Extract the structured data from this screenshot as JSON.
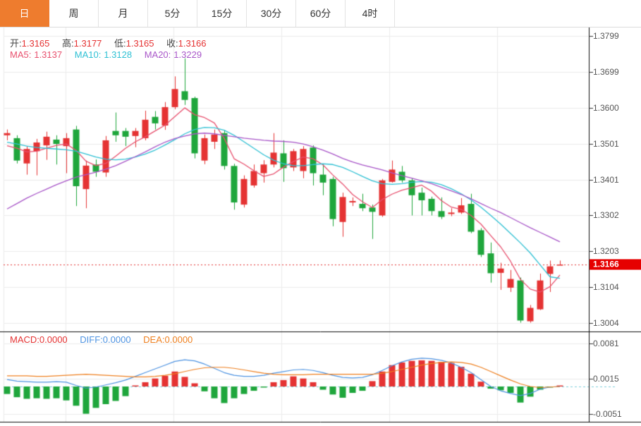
{
  "toolbar": {
    "tabs": [
      {
        "label": "日",
        "active": true
      },
      {
        "label": "周",
        "active": false
      },
      {
        "label": "月",
        "active": false
      },
      {
        "label": "5分",
        "active": false
      },
      {
        "label": "15分",
        "active": false
      },
      {
        "label": "30分",
        "active": false
      },
      {
        "label": "60分",
        "active": false
      },
      {
        "label": "4时",
        "active": false
      }
    ]
  },
  "ohlc": {
    "open_label": "开:",
    "open": "1.3165",
    "high_label": "高:",
    "high": "1.3177",
    "low_label": "低:",
    "low": "1.3165",
    "close_label": "收:",
    "close": "1.3166"
  },
  "ma_row": {
    "ma5_label": "MA5:",
    "ma5": "1.3137",
    "ma10_label": "MA10:",
    "ma10": "1.3128",
    "ma20_label": "MA20:",
    "ma20": "1.3229"
  },
  "macd_row": {
    "macd_label": "MACD:",
    "macd": "0.0000",
    "diff_label": "DIFF:",
    "diff": "0.0000",
    "dea_label": "DEA:",
    "dea": "0.0000"
  },
  "price_axis": {
    "labels": [
      "1.3799",
      "1.3699",
      "1.3600",
      "1.3501",
      "1.3401",
      "1.3302",
      "1.3203",
      "1.3104",
      "1.3004"
    ],
    "current_price_label": "1.3166"
  },
  "macd_axis": {
    "labels": [
      "0.0081",
      "0.0015",
      "-0.0051"
    ]
  },
  "colors": {
    "up": "#e53333",
    "down": "#1fa63c",
    "ma5": "#e8506e",
    "ma10": "#2fc1d4",
    "ma20": "#a957c9",
    "diff": "#4f94e2",
    "dea": "#ef8121",
    "grid": "#ececec",
    "frame": "#111111",
    "zero_dash": "#7fd0dc",
    "current_line": "#e53333",
    "badge_bg": "#e60000",
    "tab_active_bg": "#ee7c2e",
    "axis_text": "#555555"
  },
  "chart_data": {
    "type": "candlestick",
    "panels": [
      {
        "name": "price",
        "type": "candlestick",
        "yticks": [
          1.3799,
          1.3699,
          1.36,
          1.3501,
          1.3401,
          1.3302,
          1.3203,
          1.3104,
          1.3004
        ],
        "current_price": 1.3166,
        "candles": [
          [
            1.3524,
            1.354,
            1.351,
            1.353
          ],
          [
            1.3516,
            1.3524,
            1.3446,
            1.3454
          ],
          [
            1.3446,
            1.3494,
            1.3415,
            1.3486
          ],
          [
            1.348,
            1.3514,
            1.3413,
            1.3504
          ],
          [
            1.3496,
            1.3534,
            1.3456,
            1.352
          ],
          [
            1.3512,
            1.3524,
            1.3443,
            1.35
          ],
          [
            1.3494,
            1.353,
            1.3419,
            1.3516
          ],
          [
            1.354,
            1.355,
            1.3328,
            1.3383
          ],
          [
            1.3375,
            1.3454,
            1.3322,
            1.344
          ],
          [
            1.3443,
            1.3457,
            1.3409,
            1.3423
          ],
          [
            1.3421,
            1.3522,
            1.3409,
            1.351
          ],
          [
            1.3536,
            1.3587,
            1.3506,
            1.3524
          ],
          [
            1.3536,
            1.3544,
            1.3494,
            1.352
          ],
          [
            1.3522,
            1.3544,
            1.3491,
            1.3536
          ],
          [
            1.3516,
            1.3592,
            1.351,
            1.3567
          ],
          [
            1.3575,
            1.3591,
            1.354,
            1.3557
          ],
          [
            1.3551,
            1.3616,
            1.3539,
            1.3602
          ],
          [
            1.3602,
            1.3687,
            1.3596,
            1.3652
          ],
          [
            1.3646,
            1.3737,
            1.3608,
            1.3622
          ],
          [
            1.3627,
            1.3631,
            1.346,
            1.3474
          ],
          [
            1.3454,
            1.3526,
            1.3444,
            1.3516
          ],
          [
            1.3506,
            1.354,
            1.3486,
            1.3526
          ],
          [
            1.353,
            1.3538,
            1.3429,
            1.3439
          ],
          [
            1.3439,
            1.3445,
            1.3318,
            1.3338
          ],
          [
            1.3332,
            1.3413,
            1.3324,
            1.3403
          ],
          [
            1.3385,
            1.3443,
            1.3379,
            1.3425
          ],
          [
            1.3419,
            1.3455,
            1.3393,
            1.3443
          ],
          [
            1.3443,
            1.353,
            1.3435,
            1.3476
          ],
          [
            1.3474,
            1.351,
            1.3395,
            1.3433
          ],
          [
            1.3435,
            1.3486,
            1.3425,
            1.348
          ],
          [
            1.3425,
            1.3494,
            1.3405,
            1.3486
          ],
          [
            1.349,
            1.3496,
            1.3385,
            1.3419
          ],
          [
            1.3415,
            1.3445,
            1.3358,
            1.3393
          ],
          [
            1.3403,
            1.3409,
            1.3272,
            1.3292
          ],
          [
            1.3284,
            1.3365,
            1.3243,
            1.3353
          ],
          [
            1.3338,
            1.3352,
            1.3328,
            1.3342
          ],
          [
            1.3334,
            1.3362,
            1.3314,
            1.3322
          ],
          [
            1.3324,
            1.3332,
            1.3237,
            1.3312
          ],
          [
            1.3302,
            1.3403,
            1.3298,
            1.3399
          ],
          [
            1.3395,
            1.3454,
            1.3393,
            1.3429
          ],
          [
            1.3423,
            1.3439,
            1.3393,
            1.3399
          ],
          [
            1.3399,
            1.3405,
            1.3302,
            1.3358
          ],
          [
            1.3365,
            1.3379,
            1.3302,
            1.3344
          ],
          [
            1.3348,
            1.3354,
            1.3302,
            1.3314
          ],
          [
            1.3314,
            1.3352,
            1.3292,
            1.3298
          ],
          [
            1.3306,
            1.3322,
            1.33,
            1.331
          ],
          [
            1.331,
            1.335,
            1.3306,
            1.333
          ],
          [
            1.3334,
            1.3362,
            1.3253,
            1.3257
          ],
          [
            1.3261,
            1.3267,
            1.3187,
            1.3193
          ],
          [
            1.3197,
            1.3227,
            1.3116,
            1.3142
          ],
          [
            1.3143,
            1.3171,
            1.3096,
            1.3155
          ],
          [
            1.3102,
            1.3151,
            1.309,
            1.3126
          ],
          [
            1.3122,
            1.313,
            1.3005,
            1.3011
          ],
          [
            1.3009,
            1.3054,
            1.3005,
            1.3046
          ],
          [
            1.3042,
            1.3141,
            1.304,
            1.3122
          ],
          [
            1.314,
            1.3177,
            1.309,
            1.3161
          ],
          [
            1.3165,
            1.3177,
            1.3165,
            1.3166
          ]
        ],
        "overlays": [
          {
            "name": "MA5",
            "values": [
              1.3495,
              1.3488,
              1.3478,
              1.348,
              1.3488,
              1.3496,
              1.35,
              1.3482,
              1.3452,
              1.344,
              1.3446,
              1.3466,
              1.3488,
              1.3506,
              1.352,
              1.3536,
              1.3552,
              1.3576,
              1.36,
              1.3581,
              1.3573,
              1.3558,
              1.3515,
              1.3459,
              1.3444,
              1.3426,
              1.341,
              1.3417,
              1.3436,
              1.3451,
              1.3464,
              1.3459,
              1.3442,
              1.3414,
              1.3389,
              1.336,
              1.334,
              1.3324,
              1.3346,
              1.3361,
              1.3372,
              1.3379,
              1.3386,
              1.3369,
              1.3343,
              1.3325,
              1.3319,
              1.3302,
              1.3278,
              1.3246,
              1.3215,
              1.3175,
              1.3125,
              1.3098,
              1.309,
              1.3105,
              1.3137
            ]
          },
          {
            "name": "MA10",
            "values": [
              1.3505,
              1.35,
              1.3494,
              1.349,
              1.3488,
              1.3486,
              1.3484,
              1.348,
              1.3472,
              1.3464,
              1.3458,
              1.3456,
              1.3458,
              1.3464,
              1.3472,
              1.3483,
              1.3497,
              1.3512,
              1.3528,
              1.354,
              1.3546,
              1.3545,
              1.3538,
              1.3524,
              1.3506,
              1.3488,
              1.347,
              1.3455,
              1.3445,
              1.344,
              1.344,
              1.3443,
              1.3445,
              1.3443,
              1.3435,
              1.3423,
              1.341,
              1.3398,
              1.339,
              1.3388,
              1.339,
              1.3394,
              1.3396,
              1.3394,
              1.3387,
              1.3376,
              1.3362,
              1.3345,
              1.3325,
              1.3302,
              1.3278,
              1.3252,
              1.3226,
              1.3198,
              1.3165,
              1.3132,
              1.3128
            ]
          },
          {
            "name": "MA20",
            "values": [
              1.332,
              1.3335,
              1.335,
              1.3363,
              1.3375,
              1.3387,
              1.3398,
              1.3408,
              1.3415,
              1.3422,
              1.343,
              1.344,
              1.3452,
              1.3465,
              1.3478,
              1.3492,
              1.3505,
              1.3515,
              1.3522,
              1.3528,
              1.353,
              1.3528,
              1.3524,
              1.352,
              1.3516,
              1.3513,
              1.351,
              1.3508,
              1.3507,
              1.3505,
              1.35,
              1.3492,
              1.3483,
              1.3472,
              1.346,
              1.345,
              1.3442,
              1.3435,
              1.3428,
              1.342,
              1.3412,
              1.3405,
              1.3398,
              1.339,
              1.338,
              1.337,
              1.336,
              1.3348,
              1.3335,
              1.3322,
              1.331,
              1.3296,
              1.3282,
              1.3268,
              1.3255,
              1.3242,
              1.3229
            ]
          }
        ]
      },
      {
        "name": "macd",
        "type": "macd",
        "yticks": [
          0.0081,
          0.0015,
          -0.0051
        ],
        "zero": 0,
        "hist": [
          -0.0014,
          -0.002,
          -0.0023,
          -0.0022,
          -0.0023,
          -0.0022,
          -0.0026,
          -0.0036,
          -0.0051,
          -0.004,
          -0.0033,
          -0.0027,
          -0.0018,
          0.0002,
          0.0008,
          0.0015,
          0.002,
          0.0028,
          0.0018,
          0.0006,
          -0.0009,
          -0.0022,
          -0.0031,
          -0.0022,
          -0.0014,
          -0.0008,
          -0.0001,
          0.0008,
          0.0012,
          0.0019,
          0.0015,
          0.0008,
          -0.0006,
          -0.0015,
          -0.0021,
          -0.0012,
          -0.0008,
          0.001,
          0.0028,
          0.004,
          0.0045,
          0.0048,
          0.0049,
          0.0048,
          0.0046,
          0.0044,
          0.0037,
          0.0024,
          0.0009,
          -0.0004,
          -0.0007,
          -0.0012,
          -0.003,
          -0.0019,
          -0.0006,
          -0.0001,
          0.0
        ],
        "lines": [
          {
            "name": "DIFF",
            "values": [
              0.0013,
              0.001,
              0.0009,
              0.0008,
              0.0008,
              0.0009,
              0.0008,
              0.0002,
              -0.0003,
              -0.0001,
              0.0003,
              0.0007,
              0.0012,
              0.0019,
              0.0026,
              0.0033,
              0.004,
              0.0047,
              0.005,
              0.0048,
              0.0042,
              0.0034,
              0.0026,
              0.0021,
              0.0019,
              0.0019,
              0.0021,
              0.0025,
              0.0028,
              0.0031,
              0.0032,
              0.003,
              0.0026,
              0.0021,
              0.0017,
              0.0016,
              0.0017,
              0.0022,
              0.003,
              0.0039,
              0.0046,
              0.0051,
              0.0053,
              0.0052,
              0.0049,
              0.0044,
              0.0036,
              0.0026,
              0.0013,
              0.0,
              -0.0008,
              -0.0013,
              -0.0017,
              -0.0013,
              -0.0005,
              -0.0001,
              0.0
            ]
          },
          {
            "name": "DEA",
            "values": [
              0.002,
              0.002,
              0.002,
              0.0019,
              0.0019,
              0.002,
              0.0021,
              0.0022,
              0.0023,
              0.0022,
              0.0021,
              0.002,
              0.0019,
              0.0018,
              0.0018,
              0.0019,
              0.0021,
              0.0024,
              0.0028,
              0.0032,
              0.0035,
              0.0036,
              0.0036,
              0.0034,
              0.0031,
              0.0028,
              0.0025,
              0.0023,
              0.0022,
              0.0022,
              0.0022,
              0.0023,
              0.0023,
              0.0023,
              0.0023,
              0.0023,
              0.0023,
              0.0023,
              0.0025,
              0.0028,
              0.0032,
              0.0036,
              0.004,
              0.0043,
              0.0045,
              0.0046,
              0.0045,
              0.0042,
              0.0036,
              0.0028,
              0.002,
              0.0012,
              0.0005,
              0.0,
              -0.0002,
              -0.0001,
              0.0
            ]
          }
        ]
      }
    ]
  }
}
